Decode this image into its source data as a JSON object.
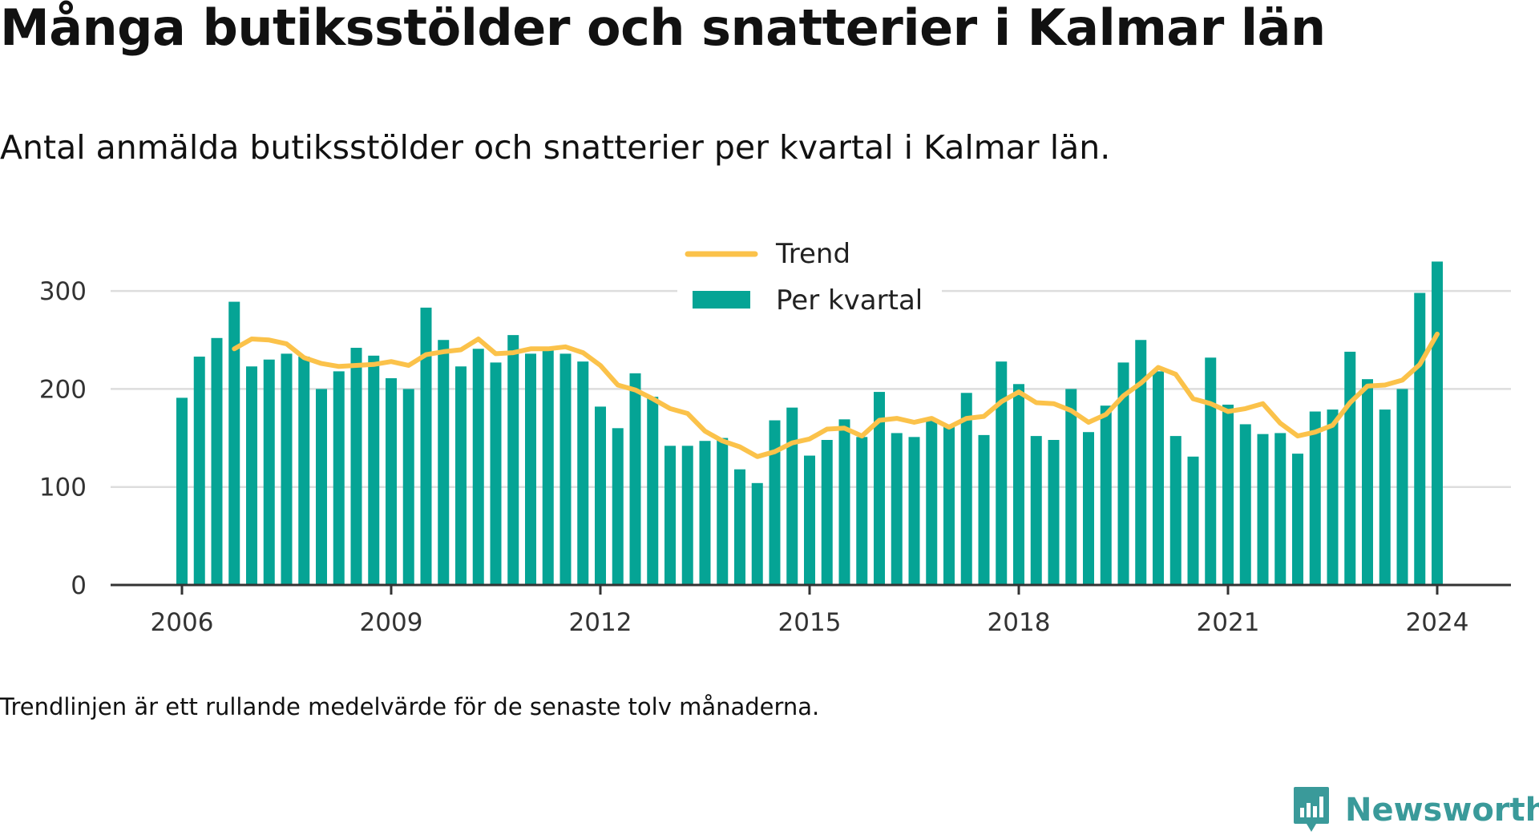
{
  "title": "Många butiksstölder och snatterier i Kalmar län",
  "subtitle": "Antal anmälda butiksstölder och snatterier per kvartal i Kalmar län.",
  "footnote": "Trendlinjen är ett rullande medelvärde för de senaste tolv månaderna.",
  "brand": {
    "name": "Newsworthy",
    "icon": "newsworthy-logo-icon"
  },
  "colors": {
    "bars": "#05a495",
    "trend": "#fbc24a",
    "grid": "#dddddd",
    "axis": "#333333",
    "brand": "#3a9a9a"
  },
  "chart_data": {
    "type": "bar",
    "x_unit": "quarter",
    "first_period": "2006 Q1",
    "ylim": [
      0,
      330
    ],
    "y_ticks": [
      0,
      100,
      200,
      300
    ],
    "x_ticks": [
      "2006",
      "2009",
      "2012",
      "2015",
      "2018",
      "2021",
      "2024"
    ],
    "grid": true,
    "legend_position": "top-center",
    "series": [
      {
        "name": "Per kvartal",
        "type": "bar",
        "values": [
          191,
          233,
          252,
          289,
          223,
          230,
          236,
          233,
          200,
          218,
          242,
          234,
          211,
          200,
          283,
          250,
          223,
          241,
          227,
          255,
          236,
          240,
          236,
          228,
          182,
          160,
          216,
          192,
          142,
          142,
          147,
          150,
          118,
          104,
          168,
          181,
          132,
          148,
          169,
          151,
          197,
          155,
          151,
          168,
          163,
          196,
          153,
          228,
          205,
          152,
          148,
          200,
          156,
          183,
          227,
          250,
          218,
          152,
          131,
          232,
          184,
          164,
          154,
          155,
          134,
          177,
          179,
          238,
          210,
          179,
          200,
          298,
          330
        ]
      },
      {
        "name": "Trend",
        "type": "line",
        "values": [
          null,
          null,
          null,
          241,
          251,
          250,
          246,
          232,
          226,
          223,
          224,
          225,
          228,
          224,
          235,
          238,
          240,
          251,
          236,
          237,
          241,
          241,
          243,
          237,
          224,
          204,
          199,
          190,
          180,
          175,
          157,
          147,
          141,
          131,
          136,
          145,
          149,
          159,
          160,
          152,
          168,
          170,
          166,
          170,
          161,
          170,
          172,
          187,
          197,
          186,
          185,
          178,
          166,
          174,
          193,
          206,
          222,
          215,
          190,
          185,
          177,
          180,
          185,
          165,
          152,
          156,
          163,
          186,
          203,
          204,
          209,
          225,
          256
        ]
      }
    ]
  }
}
